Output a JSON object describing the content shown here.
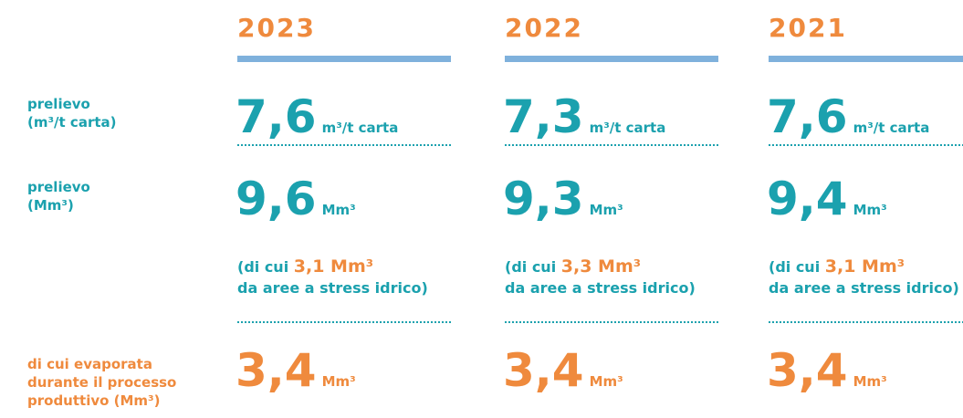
{
  "row_labels": [
    {
      "lines": [
        "prelievo",
        "(m³/t carta)"
      ]
    },
    {
      "lines": [
        "prelievo",
        "(Mm³)"
      ]
    },
    {
      "lines": [
        "di cui evaporata",
        "durante il processo",
        "produttivo (Mm³)"
      ]
    }
  ],
  "columns": [
    {
      "year": "2023",
      "intensity": {
        "value": "7,6",
        "unit": "m³/t carta"
      },
      "withdrawal": {
        "value": "9,6",
        "unit": "Mm³"
      },
      "stress": {
        "prefix": "(di cui",
        "value": "3,1 Mm³",
        "suffix": "da aree a stress idrico)"
      },
      "evaporated": {
        "value": "3,4",
        "unit": "Mm³"
      }
    },
    {
      "year": "2022",
      "intensity": {
        "value": "7,3",
        "unit": "m³/t carta"
      },
      "withdrawal": {
        "value": "9,3",
        "unit": "Mm³"
      },
      "stress": {
        "prefix": "(di cui",
        "value": "3,3 Mm³",
        "suffix": "da aree a stress idrico)"
      },
      "evaporated": {
        "value": "3,4",
        "unit": "Mm³"
      }
    },
    {
      "year": "2021",
      "intensity": {
        "value": "7,6",
        "unit": "m³/t carta"
      },
      "withdrawal": {
        "value": "9,4",
        "unit": "Mm³"
      },
      "stress": {
        "prefix": "(di cui",
        "value": "3,1 Mm³",
        "suffix": "da aree a stress idrico)"
      },
      "evaporated": {
        "value": "3,4",
        "unit": "Mm³"
      }
    }
  ]
}
